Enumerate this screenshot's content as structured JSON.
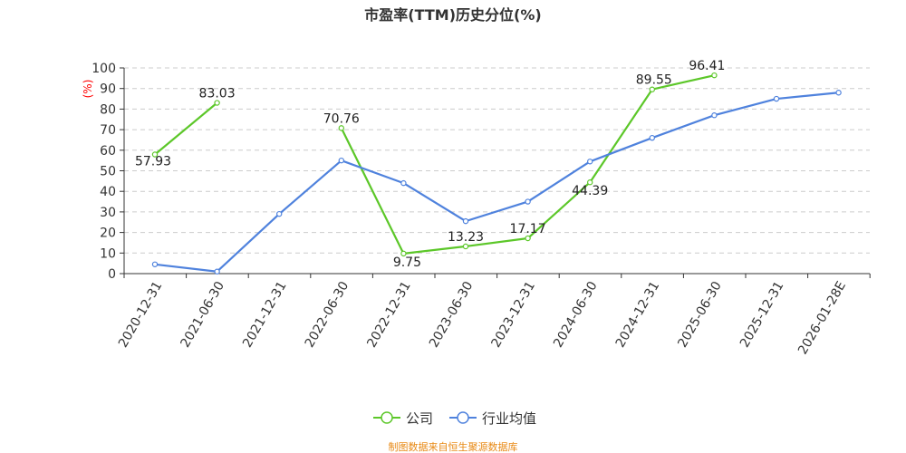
{
  "chart_data": {
    "type": "line",
    "title": "市盈率(TTM)历史分位(%)",
    "ylabel": "(%)",
    "xlabel": "",
    "ylim": [
      0,
      100
    ],
    "yticks": [
      0,
      10,
      20,
      30,
      40,
      50,
      60,
      70,
      80,
      90,
      100
    ],
    "grid": true,
    "legend_position": "bottom-center",
    "categories": [
      "2020-12-31",
      "2021-06-30",
      "2021-12-31",
      "2022-06-30",
      "2022-12-31",
      "2023-06-30",
      "2023-12-31",
      "2024-06-30",
      "2024-12-31",
      "2025-06-30",
      "2025-12-31",
      "2026-01-28E"
    ],
    "series": [
      {
        "name": "公司",
        "color": "#5cc729",
        "values": [
          57.93,
          83.03,
          null,
          70.76,
          9.75,
          13.23,
          17.17,
          44.39,
          89.55,
          96.41,
          null,
          null
        ],
        "show_data_labels": true
      },
      {
        "name": "行业均值",
        "color": "#4f82dd",
        "values": [
          4.5,
          1.0,
          29.0,
          55.0,
          44.0,
          25.5,
          35.0,
          54.5,
          66.0,
          77.0,
          85.0,
          88.0
        ],
        "show_data_labels": false
      }
    ]
  },
  "source_note": "制图数据来自恒生聚源数据库",
  "colors": {
    "axis": "#333333",
    "grid": "#cccccc",
    "ylabel": "#ff0000",
    "source_note": "#e88a16"
  }
}
